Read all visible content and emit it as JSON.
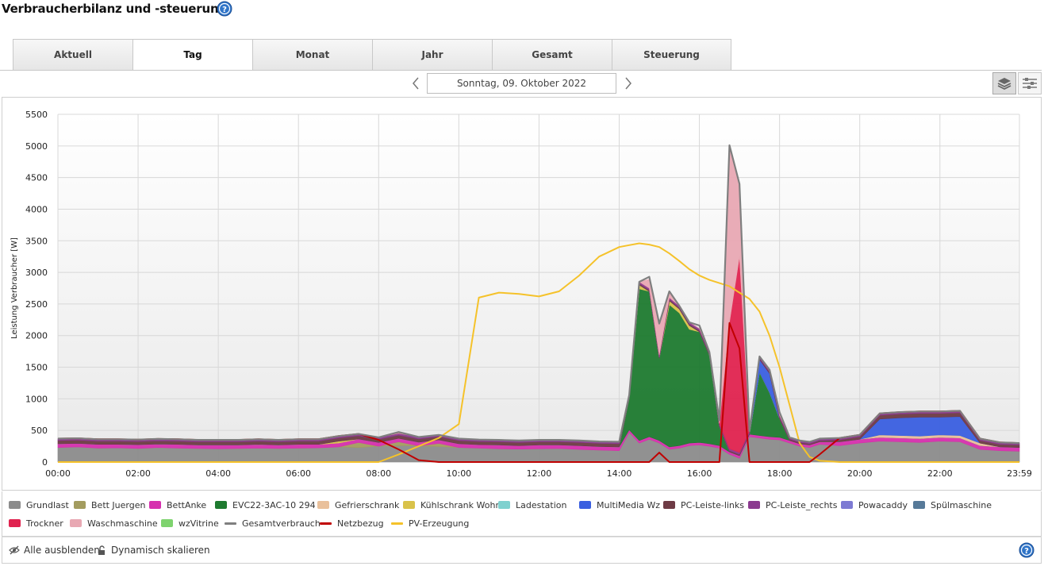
{
  "page": {
    "title": "Verbraucherbilanz und -steuerung",
    "help_icon": "help-icon"
  },
  "tabs": [
    {
      "label": "Aktuell",
      "active": false
    },
    {
      "label": "Tag",
      "active": true
    },
    {
      "label": "Monat",
      "active": false
    },
    {
      "label": "Jahr",
      "active": false
    },
    {
      "label": "Gesamt",
      "active": false
    },
    {
      "label": "Steuerung",
      "active": false
    }
  ],
  "date_nav": {
    "date": "Sonntag, 09. Oktober 2022",
    "prev_icon": "chevron-left-icon",
    "next_icon": "chevron-right-icon"
  },
  "view_toggle": {
    "stacked_icon": "stacked-layers-icon",
    "stacked_active": true,
    "lines_icon": "sliders-icon"
  },
  "footer": {
    "hide_all_label": "Alle ausblenden",
    "hide_all_icon": "eye-slash-icon",
    "dynamic_scale_label": "Dynamisch skalieren",
    "dynamic_scale_icon": "unlock-icon"
  },
  "chart_data": {
    "type": "area",
    "stacked": true,
    "ylabel": "Leistung Verbraucher [W]",
    "xlabel": "",
    "ylim": [
      0,
      5500
    ],
    "yticks": [
      "0",
      "500",
      "1000",
      "1500",
      "2000",
      "2500",
      "3000",
      "3500",
      "4000",
      "4500",
      "5000",
      "5500"
    ],
    "xticks": [
      "00:00",
      "02:00",
      "04:00",
      "06:00",
      "08:00",
      "10:00",
      "12:00",
      "14:00",
      "16:00",
      "18:00",
      "20:00",
      "22:00",
      "23:59"
    ],
    "grid": true,
    "legend_position": "bottom",
    "x": [
      "00:00",
      "00:30",
      "01:00",
      "01:30",
      "02:00",
      "02:30",
      "03:00",
      "03:30",
      "04:00",
      "04:30",
      "05:00",
      "05:30",
      "06:00",
      "06:30",
      "07:00",
      "07:30",
      "08:00",
      "08:30",
      "09:00",
      "09:30",
      "10:00",
      "10:30",
      "11:00",
      "11:30",
      "12:00",
      "12:30",
      "13:00",
      "13:30",
      "14:00",
      "14:15",
      "14:30",
      "14:45",
      "15:00",
      "15:15",
      "15:30",
      "15:45",
      "16:00",
      "16:15",
      "16:30",
      "16:45",
      "17:00",
      "17:15",
      "17:30",
      "17:45",
      "18:00",
      "18:15",
      "18:30",
      "18:45",
      "19:00",
      "19:30",
      "20:00",
      "20:30",
      "21:00",
      "21:30",
      "22:00",
      "22:30",
      "23:00",
      "23:30",
      "23:59"
    ],
    "series": [
      {
        "name": "Grundlast",
        "color": "#8c8c8c",
        "kind": "area",
        "values": [
          230,
          240,
          220,
          225,
          215,
          230,
          220,
          215,
          210,
          215,
          220,
          215,
          220,
          225,
          240,
          230,
          250,
          260,
          255,
          245,
          230,
          220,
          210,
          205,
          210,
          215,
          200,
          190,
          180,
          470,
          300,
          360,
          300,
          200,
          220,
          260,
          270,
          250,
          220,
          120,
          60,
          400,
          380,
          360,
          350,
          300,
          250,
          230,
          280,
          260,
          300,
          330,
          320,
          310,
          330,
          320,
          200,
          180,
          170
        ]
      },
      {
        "name": "Bett Juergen",
        "color": "#a39c5f",
        "kind": "area",
        "values": [
          0,
          0,
          0,
          0,
          0,
          0,
          0,
          0,
          0,
          0,
          0,
          0,
          0,
          0,
          0,
          80,
          0,
          60,
          0,
          50,
          0,
          0,
          0,
          0,
          0,
          0,
          0,
          0,
          0,
          0,
          0,
          0,
          0,
          0,
          0,
          0,
          0,
          0,
          0,
          0,
          0,
          0,
          0,
          0,
          0,
          0,
          0,
          0,
          0,
          0,
          0,
          0,
          0,
          0,
          0,
          0,
          0,
          0,
          0
        ]
      },
      {
        "name": "BettAnke",
        "color": "#d62fae",
        "kind": "area",
        "values": [
          60,
          55,
          60,
          55,
          60,
          55,
          60,
          55,
          60,
          55,
          60,
          55,
          60,
          55,
          60,
          55,
          60,
          55,
          60,
          55,
          60,
          55,
          60,
          55,
          60,
          55,
          60,
          55,
          60,
          40,
          40,
          40,
          40,
          40,
          40,
          40,
          40,
          40,
          40,
          40,
          40,
          40,
          40,
          40,
          40,
          40,
          40,
          40,
          40,
          60,
          60,
          60,
          60,
          60,
          60,
          60,
          60,
          60,
          60
        ]
      },
      {
        "name": "EVC22-3AC-10 294",
        "color": "#1e7a2f",
        "kind": "area",
        "values": [
          0,
          0,
          0,
          0,
          0,
          0,
          0,
          0,
          0,
          0,
          0,
          0,
          0,
          0,
          0,
          0,
          0,
          0,
          0,
          0,
          0,
          0,
          0,
          0,
          0,
          0,
          0,
          0,
          0,
          500,
          2400,
          2300,
          1300,
          2250,
          2100,
          1800,
          1750,
          1400,
          300,
          0,
          0,
          0,
          1000,
          700,
          300,
          0,
          0,
          0,
          0,
          0,
          0,
          0,
          0,
          0,
          0,
          0,
          0,
          0,
          0
        ]
      },
      {
        "name": "Gefrierschrank",
        "color": "#e9c09b",
        "kind": "area",
        "values": [
          0,
          0,
          0,
          0,
          0,
          0,
          0,
          0,
          0,
          0,
          0,
          0,
          0,
          0,
          0,
          0,
          0,
          0,
          0,
          0,
          0,
          0,
          0,
          0,
          0,
          0,
          0,
          0,
          0,
          0,
          0,
          0,
          0,
          0,
          0,
          0,
          0,
          0,
          0,
          0,
          0,
          0,
          0,
          0,
          0,
          0,
          0,
          0,
          0,
          0,
          0,
          40,
          40,
          40,
          40,
          40,
          40,
          0,
          0
        ]
      },
      {
        "name": "Kühlschrank Wohnz",
        "color": "#d9c24a",
        "kind": "area",
        "values": [
          0,
          0,
          0,
          0,
          0,
          0,
          0,
          0,
          0,
          0,
          0,
          0,
          0,
          0,
          30,
          0,
          0,
          0,
          0,
          0,
          0,
          0,
          0,
          0,
          0,
          0,
          0,
          0,
          0,
          0,
          60,
          0,
          0,
          60,
          60,
          60,
          0,
          0,
          0,
          0,
          0,
          0,
          0,
          0,
          0,
          0,
          0,
          0,
          0,
          0,
          0,
          0,
          0,
          0,
          0,
          0,
          0,
          0,
          0
        ]
      },
      {
        "name": "Ladestation",
        "color": "#7fd1cf",
        "kind": "area",
        "values": [
          0,
          0,
          0,
          0,
          0,
          0,
          0,
          0,
          0,
          0,
          0,
          0,
          0,
          0,
          0,
          0,
          0,
          0,
          0,
          0,
          0,
          0,
          0,
          0,
          0,
          0,
          0,
          0,
          0,
          0,
          0,
          0,
          0,
          0,
          0,
          0,
          0,
          0,
          0,
          0,
          0,
          0,
          0,
          0,
          0,
          0,
          0,
          0,
          0,
          0,
          0,
          0,
          0,
          0,
          0,
          0,
          0,
          0,
          0
        ]
      },
      {
        "name": "MultiMedia Wz",
        "color": "#3a5fe0",
        "kind": "area",
        "values": [
          0,
          0,
          0,
          0,
          0,
          0,
          0,
          0,
          0,
          0,
          0,
          0,
          0,
          0,
          0,
          0,
          0,
          0,
          0,
          0,
          0,
          0,
          0,
          0,
          0,
          0,
          0,
          0,
          0,
          0,
          0,
          0,
          0,
          0,
          0,
          0,
          0,
          0,
          0,
          0,
          0,
          0,
          200,
          300,
          0,
          0,
          0,
          0,
          0,
          0,
          0,
          250,
          280,
          300,
          280,
          300,
          0,
          0,
          0
        ]
      },
      {
        "name": "PC-Leiste-links",
        "color": "#6e3b45",
        "kind": "area",
        "values": [
          50,
          50,
          50,
          50,
          50,
          50,
          50,
          50,
          50,
          50,
          50,
          50,
          50,
          50,
          50,
          50,
          50,
          50,
          50,
          50,
          50,
          50,
          50,
          50,
          50,
          50,
          50,
          50,
          50,
          20,
          20,
          20,
          20,
          20,
          20,
          20,
          20,
          20,
          20,
          20,
          20,
          20,
          20,
          20,
          20,
          20,
          20,
          20,
          20,
          30,
          40,
          60,
          60,
          60,
          60,
          60,
          40,
          40,
          40
        ]
      },
      {
        "name": "PC-Leiste_rechts",
        "color": "#8b3a8f",
        "kind": "area",
        "values": [
          30,
          30,
          30,
          30,
          30,
          30,
          30,
          30,
          30,
          30,
          30,
          30,
          30,
          30,
          30,
          30,
          30,
          30,
          30,
          30,
          30,
          30,
          30,
          30,
          30,
          30,
          30,
          30,
          30,
          30,
          30,
          30,
          30,
          30,
          30,
          30,
          30,
          30,
          30,
          30,
          30,
          30,
          30,
          30,
          30,
          30,
          30,
          30,
          30,
          30,
          30,
          30,
          30,
          30,
          30,
          30,
          30,
          30,
          30
        ]
      },
      {
        "name": "Powacaddy",
        "color": "#7d7ad3",
        "kind": "area",
        "values": [
          0,
          0,
          0,
          0,
          0,
          0,
          0,
          0,
          0,
          0,
          0,
          0,
          0,
          0,
          0,
          0,
          0,
          0,
          0,
          0,
          0,
          0,
          0,
          0,
          0,
          0,
          0,
          0,
          0,
          0,
          0,
          0,
          0,
          0,
          0,
          0,
          0,
          0,
          0,
          0,
          0,
          0,
          0,
          0,
          0,
          0,
          0,
          0,
          0,
          0,
          0,
          0,
          0,
          0,
          0,
          0,
          0,
          0,
          0
        ]
      },
      {
        "name": "Spülmaschine",
        "color": "#577a99",
        "kind": "area",
        "values": [
          0,
          0,
          0,
          0,
          0,
          0,
          0,
          0,
          0,
          0,
          0,
          0,
          0,
          0,
          0,
          0,
          0,
          0,
          0,
          0,
          0,
          0,
          0,
          0,
          0,
          0,
          0,
          0,
          0,
          0,
          0,
          0,
          0,
          0,
          0,
          0,
          0,
          0,
          0,
          0,
          0,
          0,
          0,
          0,
          0,
          0,
          0,
          0,
          0,
          0,
          0,
          0,
          0,
          0,
          0,
          0,
          0,
          0,
          0
        ]
      },
      {
        "name": "Trockner",
        "color": "#e0234f",
        "kind": "area",
        "values": [
          0,
          0,
          0,
          0,
          0,
          0,
          0,
          0,
          0,
          0,
          0,
          0,
          0,
          0,
          0,
          0,
          0,
          0,
          0,
          0,
          0,
          0,
          0,
          0,
          0,
          0,
          0,
          0,
          0,
          0,
          0,
          0,
          0,
          0,
          0,
          0,
          0,
          0,
          0,
          2000,
          3100,
          0,
          0,
          0,
          0,
          0,
          0,
          0,
          0,
          0,
          0,
          0,
          0,
          0,
          0,
          0,
          0,
          0,
          0
        ]
      },
      {
        "name": "Waschmaschine",
        "color": "#e8a8b3",
        "kind": "area",
        "values": [
          0,
          0,
          0,
          0,
          0,
          0,
          0,
          0,
          0,
          0,
          0,
          0,
          0,
          0,
          0,
          0,
          0,
          0,
          0,
          0,
          0,
          0,
          0,
          0,
          0,
          0,
          0,
          0,
          0,
          0,
          0,
          140,
          500,
          100,
          20,
          0,
          0,
          0,
          0,
          2800,
          1150,
          0,
          0,
          0,
          0,
          0,
          0,
          0,
          0,
          0,
          0,
          0,
          0,
          0,
          0,
          0,
          0,
          0,
          0
        ]
      },
      {
        "name": "wzVitrine",
        "color": "#7ed36e",
        "kind": "area",
        "values": [
          0,
          0,
          0,
          0,
          0,
          0,
          0,
          0,
          0,
          0,
          0,
          0,
          0,
          0,
          0,
          0,
          0,
          0,
          0,
          0,
          0,
          0,
          0,
          0,
          0,
          0,
          0,
          0,
          0,
          0,
          0,
          0,
          0,
          0,
          0,
          0,
          0,
          0,
          0,
          0,
          0,
          0,
          0,
          0,
          0,
          0,
          0,
          0,
          0,
          0,
          0,
          0,
          0,
          0,
          0,
          0,
          0,
          0,
          0
        ]
      },
      {
        "name": "Gesamtverbrauch",
        "color": "#7f7f7f",
        "kind": "line",
        "values": [
          370,
          375,
          360,
          360,
          355,
          365,
          360,
          350,
          350,
          350,
          360,
          350,
          360,
          360,
          410,
          445,
          390,
          475,
          395,
          430,
          370,
          355,
          350,
          340,
          350,
          350,
          340,
          325,
          320,
          1060,
          2850,
          2930,
          2190,
          2700,
          2470,
          2210,
          2160,
          1740,
          660,
          5010,
          4400,
          490,
          1670,
          1460,
          790,
          390,
          340,
          320,
          370,
          380,
          430,
          770,
          790,
          800,
          800,
          810,
          370,
          310,
          300
        ]
      },
      {
        "name": "Netzbezug",
        "color": "#c00000",
        "kind": "line",
        "values": [
          370,
          375,
          360,
          360,
          355,
          365,
          360,
          350,
          350,
          350,
          360,
          350,
          360,
          360,
          410,
          445,
          350,
          200,
          30,
          0,
          0,
          0,
          0,
          0,
          0,
          0,
          0,
          0,
          0,
          0,
          0,
          0,
          150,
          0,
          0,
          0,
          0,
          0,
          0,
          2200,
          1800,
          0,
          0,
          0,
          0,
          0,
          0,
          0,
          120,
          380,
          430,
          770,
          790,
          800,
          800,
          810,
          370,
          310,
          300
        ]
      },
      {
        "name": "PV-Erzeugung",
        "color": "#f5c22a",
        "kind": "line",
        "values": [
          0,
          0,
          0,
          0,
          0,
          0,
          0,
          0,
          0,
          0,
          0,
          0,
          0,
          0,
          0,
          0,
          0,
          120,
          250,
          380,
          600,
          2600,
          2680,
          2660,
          2620,
          2700,
          2950,
          3250,
          3400,
          3430,
          3460,
          3440,
          3400,
          3300,
          3180,
          3050,
          2950,
          2880,
          2830,
          2780,
          2680,
          2580,
          2380,
          2000,
          1500,
          900,
          300,
          80,
          20,
          0,
          0,
          0,
          0,
          0,
          0,
          0,
          0,
          0,
          0
        ]
      }
    ]
  }
}
